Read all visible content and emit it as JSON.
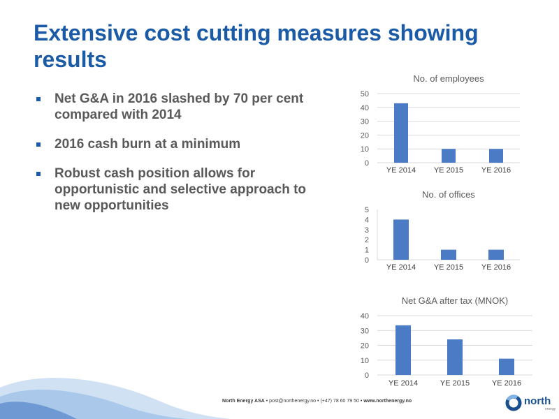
{
  "slide": {
    "title": "Extensive cost cutting measures showing results",
    "bullets": [
      "Net G&A in 2016 slashed by 70 per cent compared with 2014",
      "2016 cash burn at a minimum",
      "Robust cash position allows for opportunistic and selective approach to new opportunities"
    ]
  },
  "footer": {
    "company": "North Energy ASA",
    "email": "post@northenergy.no",
    "phone": "(+47) 78 60 79 50",
    "web": "www.northenergy.no",
    "sep": "•",
    "logo_text": "north",
    "logo_sub": "energy"
  },
  "colors": {
    "title": "#1a5aa6",
    "bar": "#4a7bc4",
    "text": "#595959",
    "grid": "#d9d9d9"
  },
  "chart_data": [
    {
      "type": "bar",
      "title": "No. of employees",
      "categories": [
        "YE 2014",
        "YE 2015",
        "YE 2016"
      ],
      "values": [
        43,
        10,
        10
      ],
      "ylim": [
        0,
        50
      ],
      "yticks": [
        0,
        10,
        20,
        30,
        40,
        50
      ],
      "grid": true,
      "xlabel": "",
      "ylabel": ""
    },
    {
      "type": "bar",
      "title": "No. of offices",
      "categories": [
        "YE 2014",
        "YE 2015",
        "YE 2016"
      ],
      "values": [
        4,
        1,
        1
      ],
      "ylim": [
        0,
        5
      ],
      "yticks": [
        0,
        1,
        2,
        3,
        4,
        5
      ],
      "grid": false,
      "xlabel": "",
      "ylabel": ""
    },
    {
      "type": "bar",
      "title": "Net G&A after tax (MNOK)",
      "categories": [
        "YE 2014",
        "YE 2015",
        "YE 2016"
      ],
      "values": [
        33.5,
        24,
        11
      ],
      "ylim": [
        0,
        40
      ],
      "yticks": [
        0,
        10,
        20,
        30,
        40
      ],
      "grid": true,
      "xlabel": "",
      "ylabel": ""
    }
  ]
}
